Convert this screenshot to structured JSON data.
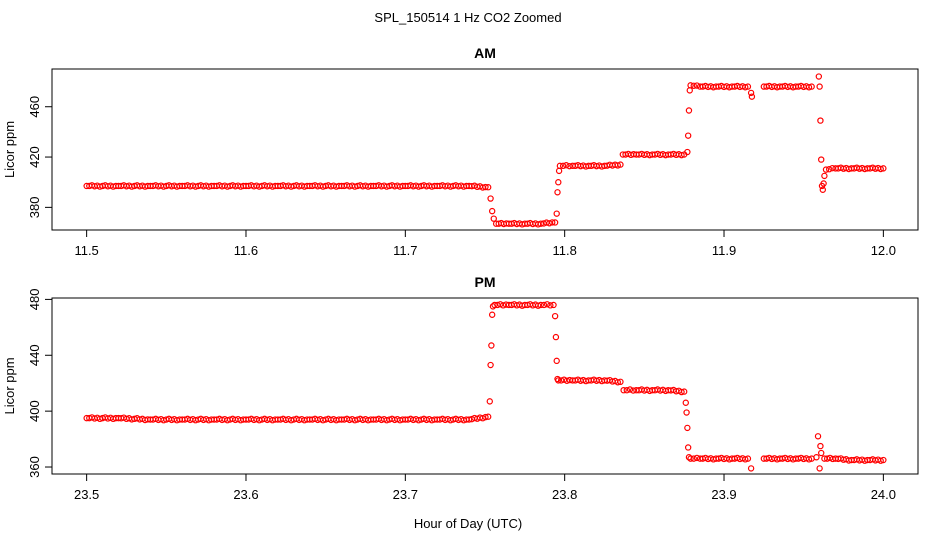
{
  "figure": {
    "title": "SPL_150514  1 Hz CO2 Zoomed",
    "xlabel": "Hour of Day (UTC)"
  },
  "chart_data": [
    {
      "type": "scatter",
      "title": "AM",
      "xlabel": "Hour of Day (UTC)",
      "ylabel": "Licor ppm",
      "xlim": [
        11.5,
        12.0
      ],
      "ylim": [
        362,
        490
      ],
      "xticks": [
        11.5,
        11.6,
        11.7,
        11.8,
        11.9,
        12.0
      ],
      "xtick_labels": [
        "11.5",
        "11.6",
        "11.7",
        "11.8",
        "11.9",
        "12.0"
      ],
      "yticks": [
        380,
        420,
        460
      ],
      "ytick_labels": [
        "380",
        "420",
        "460"
      ],
      "grid": false,
      "marker": "open circle",
      "color": "#ff0000",
      "series": [
        {
          "x": [
            11.5,
            11.52,
            11.54,
            11.56,
            11.58,
            11.6,
            11.62,
            11.64,
            11.66,
            11.68,
            11.7,
            11.72,
            11.74,
            11.752,
            11.7535,
            11.7545,
            11.7555,
            11.757,
            11.765,
            11.775,
            11.785,
            11.794,
            11.795,
            11.7955,
            11.796,
            11.7965,
            11.797,
            11.805,
            11.815,
            11.825,
            11.835,
            11.8365,
            11.845,
            11.855,
            11.865,
            11.875,
            11.877,
            11.8775,
            11.878,
            11.8785,
            11.879,
            11.885,
            11.895,
            11.905,
            11.915,
            11.917,
            11.9175,
            11.925,
            11.935,
            11.945,
            11.955,
            11.9595,
            11.96,
            11.9605,
            11.961,
            11.9615,
            11.962,
            11.9625,
            11.963,
            11.964,
            11.97,
            11.98,
            11.99,
            12.0
          ],
          "y": [
            397,
            397,
            397,
            397,
            397,
            397,
            397,
            397,
            397,
            397,
            397,
            397,
            397,
            396,
            387,
            377,
            371,
            367,
            367,
            367,
            367,
            368,
            375,
            392,
            400,
            409,
            413,
            413,
            413,
            413,
            414,
            422,
            422,
            422,
            422,
            422,
            424,
            437,
            457,
            473,
            477,
            476,
            476,
            476,
            476,
            471,
            468,
            476,
            476,
            476,
            476,
            484,
            476,
            449,
            418,
            397,
            394,
            399,
            405,
            410,
            411,
            411,
            411,
            411
          ]
        }
      ]
    },
    {
      "type": "scatter",
      "title": "PM",
      "xlabel": "Hour of Day (UTC)",
      "ylabel": "Licor ppm",
      "xlim": [
        23.5,
        24.0
      ],
      "ylim": [
        355,
        481
      ],
      "xticks": [
        23.5,
        23.6,
        23.7,
        23.8,
        23.9,
        24.0
      ],
      "xtick_labels": [
        "23.5",
        "23.6",
        "23.7",
        "23.8",
        "23.9",
        "24.0"
      ],
      "yticks": [
        360,
        400,
        440,
        480
      ],
      "ytick_labels": [
        "360",
        "400",
        "440",
        "480"
      ],
      "grid": false,
      "marker": "open circle",
      "color": "#ff0000",
      "series": [
        {
          "x": [
            23.5,
            23.52,
            23.54,
            23.56,
            23.58,
            23.6,
            23.62,
            23.64,
            23.66,
            23.68,
            23.7,
            23.72,
            23.74,
            23.752,
            23.753,
            23.7535,
            23.754,
            23.7545,
            23.755,
            23.756,
            23.765,
            23.775,
            23.785,
            23.793,
            23.794,
            23.7945,
            23.795,
            23.7955,
            23.796,
            23.805,
            23.815,
            23.825,
            23.835,
            23.837,
            23.845,
            23.855,
            23.865,
            23.875,
            23.876,
            23.8765,
            23.877,
            23.8775,
            23.878,
            23.879,
            23.885,
            23.895,
            23.905,
            23.915,
            23.917,
            23.925,
            23.935,
            23.945,
            23.955,
            23.958,
            23.959,
            23.96,
            23.9605,
            23.961,
            23.963,
            23.97,
            23.98,
            23.99,
            24.0
          ],
          "y": [
            395,
            395,
            394,
            394,
            394,
            394,
            394,
            394,
            394,
            394,
            394,
            394,
            394,
            396,
            407,
            433,
            447,
            469,
            475,
            476,
            476,
            476,
            476,
            476,
            468,
            453,
            436,
            423,
            422,
            422,
            422,
            422,
            421,
            415,
            415,
            415,
            415,
            414,
            406,
            399,
            388,
            374,
            367,
            366,
            366,
            366,
            366,
            366,
            359,
            366,
            366,
            366,
            366,
            367,
            382,
            359,
            375,
            370,
            366,
            366,
            365,
            365,
            365
          ]
        }
      ]
    }
  ]
}
